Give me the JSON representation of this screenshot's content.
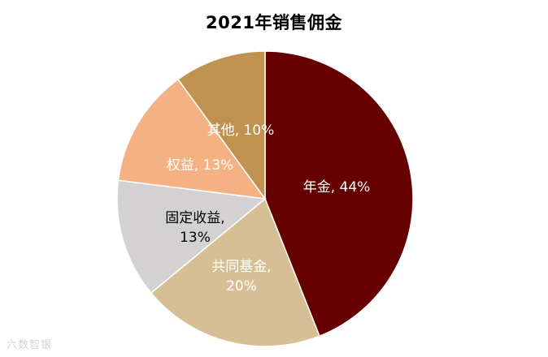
{
  "chart_data": {
    "type": "pie",
    "title": "2021年销售佣金",
    "start_angle_deg": 0,
    "direction": "clockwise",
    "slices": [
      {
        "label": "年金",
        "value": 44,
        "display": "年金, 44%",
        "color": "#660000",
        "text_color": "#ffffff"
      },
      {
        "label": "共同基金",
        "value": 20,
        "display": "共同基金,\n20%",
        "color": "#d7bf95",
        "text_color": "#ffffff"
      },
      {
        "label": "固定收益",
        "value": 13,
        "display": "固定收益,\n13%",
        "color": "#d3d1d1",
        "text_color": "#000000"
      },
      {
        "label": "权益",
        "value": 13,
        "display": "权益, 13%",
        "color": "#f4b184",
        "text_color": "#ffffff"
      },
      {
        "label": "其他",
        "value": 10,
        "display": "其他, 10%",
        "color": "#bf9250",
        "text_color": "#ffffff"
      }
    ]
  },
  "watermark": "六数智银"
}
